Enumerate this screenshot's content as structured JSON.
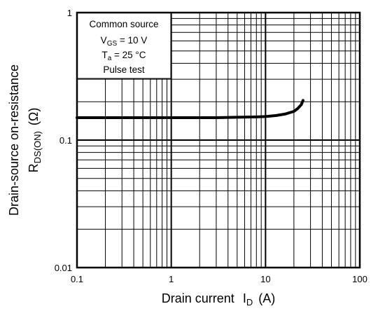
{
  "chart_data": {
    "type": "line",
    "x_scale": "log",
    "y_scale": "log",
    "xlim": [
      0.1,
      100
    ],
    "ylim": [
      0.01,
      1
    ],
    "x_ticks": [
      "0.1",
      "1",
      "10",
      "100"
    ],
    "y_ticks": [
      "0.01",
      "0.1",
      "1"
    ],
    "xlabel": {
      "main": "Drain current",
      "symbol": "I",
      "sub": "D",
      "unit": "(A)"
    },
    "ylabel": {
      "main": "Drain-source on-resistance",
      "symbol": "R",
      "sub": "DS(ON)",
      "unit": "(Ω)"
    },
    "grid": true,
    "annotation": {
      "line1": "Common source",
      "line2_symbol": "V",
      "line2_sub": "GS",
      "line2_rest": " = 10 V",
      "line3_symbol": "T",
      "line3_sub": "a",
      "line3_rest": " = 25 °C",
      "line4": "Pulse test",
      "placement": "top-left"
    },
    "series": [
      {
        "x": [
          0.1,
          0.3,
          1,
          2,
          3,
          5,
          8,
          10,
          13,
          16,
          20,
          22,
          24,
          25
        ],
        "y": [
          0.15,
          0.15,
          0.15,
          0.15,
          0.15,
          0.151,
          0.152,
          0.153,
          0.156,
          0.16,
          0.168,
          0.177,
          0.19,
          0.205
        ]
      }
    ]
  }
}
